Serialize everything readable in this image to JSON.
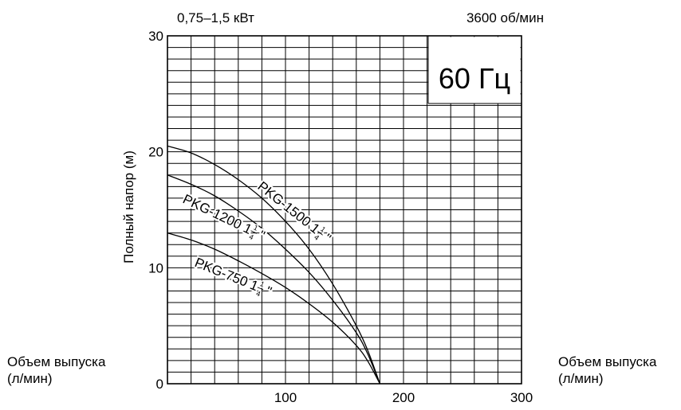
{
  "header": {
    "power": "0,75–1,5 кВт",
    "speed": "3600 об/мин",
    "frequency": "60 Гц"
  },
  "side_labels": {
    "left": [
      "Объем выпуска",
      "(л/мин)"
    ],
    "right": [
      "Объем выпуска",
      "(л/мин)"
    ]
  },
  "chart_data": {
    "type": "line",
    "ylabel": "Полный напор (м)",
    "xlim": [
      0,
      300
    ],
    "ylim": [
      0,
      30
    ],
    "x_ticks": [
      100,
      200,
      300
    ],
    "y_ticks": [
      0,
      10,
      20,
      30
    ],
    "grid": true,
    "series": [
      {
        "name": "PKG-1500 1 1/4 \"",
        "label_main": "PKG-1500 1",
        "label_frac": [
          "1",
          "4"
        ],
        "label_tail": "\"",
        "x": [
          0,
          20,
          40,
          60,
          80,
          100,
          120,
          140,
          160,
          170,
          180
        ],
        "y": [
          20.5,
          19.9,
          18.9,
          17.6,
          16.0,
          14.0,
          11.6,
          8.6,
          5.0,
          2.8,
          0
        ]
      },
      {
        "name": "PKG-1200 1 1/4 \"",
        "label_main": "PKG-1200 1",
        "label_frac": [
          "1",
          "4"
        ],
        "label_tail": "\"",
        "x": [
          0,
          20,
          40,
          60,
          80,
          100,
          120,
          140,
          160,
          170,
          180
        ],
        "y": [
          18.0,
          17.2,
          16.2,
          14.9,
          13.4,
          11.6,
          9.6,
          7.2,
          4.4,
          2.5,
          0
        ]
      },
      {
        "name": "PKG-750 1 1/4 \"",
        "label_main": "PKG-750 1",
        "label_frac": [
          "1",
          "4"
        ],
        "label_tail": "\"",
        "x": [
          0,
          20,
          40,
          60,
          80,
          100,
          120,
          140,
          160,
          170,
          180
        ],
        "y": [
          13.0,
          12.4,
          11.6,
          10.6,
          9.5,
          8.3,
          6.9,
          5.3,
          3.3,
          1.9,
          0
        ]
      }
    ]
  }
}
